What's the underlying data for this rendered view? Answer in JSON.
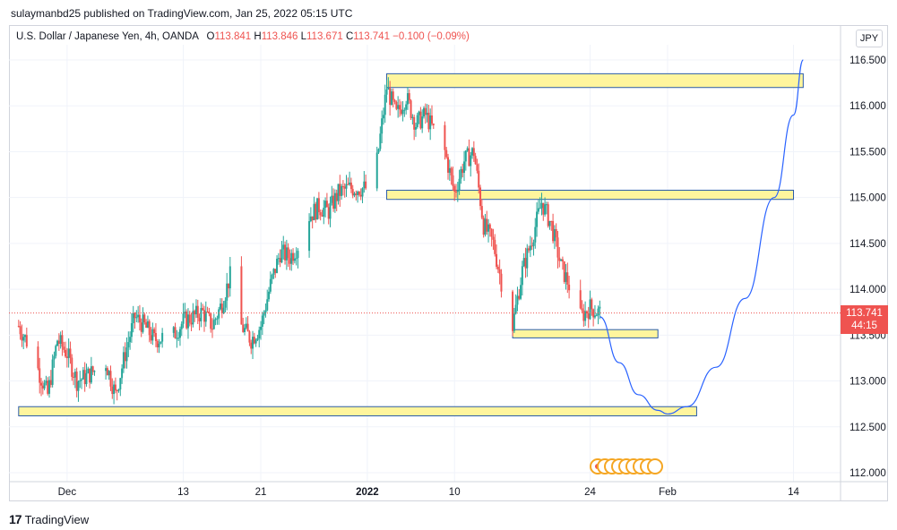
{
  "header": {
    "published_line": "sulaymanbd25 published on TradingView.com, Jan 25, 2022 05:15 UTC"
  },
  "legend": {
    "symbol": "U.S. Dollar / Japanese Yen, 4h, OANDA",
    "open_label": "O",
    "open": "113.841",
    "high_label": "H",
    "high": "113.846",
    "low_label": "L",
    "low": "113.671",
    "close_label": "C",
    "close": "113.741",
    "change": "−0.100 (−0.09%)"
  },
  "currency_button": "JPY",
  "price_tag": {
    "price": "113.741",
    "countdown": "44:15"
  },
  "footer": {
    "logo_text": "TradingView"
  },
  "colors": {
    "up": "#26a69a",
    "down": "#ef5350",
    "zone_fill": "#fff59d",
    "zone_border": "#2a5caa",
    "projection": "#2962ff",
    "last_price_line": "#ef5350"
  },
  "chart_data": {
    "type": "candlestick",
    "timeframe": "4h",
    "y_tick_labels": [
      "112.000",
      "112.500",
      "113.000",
      "113.500",
      "114.000",
      "114.500",
      "115.000",
      "115.500",
      "116.000",
      "116.500"
    ],
    "ylim": [
      111.95,
      116.65
    ],
    "x_tick_labels": [
      "Dec",
      "13",
      "21",
      "2022",
      "10",
      "24",
      "Feb",
      "14"
    ],
    "last_price": 113.741,
    "close_path": [
      [
        "2021-11-26",
        113.6
      ],
      [
        "2021-11-27",
        113.4
      ],
      [
        "2021-11-29",
        112.85
      ],
      [
        "2021-11-30",
        113.45
      ],
      [
        "2021-12-01",
        113.3
      ],
      [
        "2021-12-02",
        113.0
      ],
      [
        "2021-12-03",
        113.05
      ],
      [
        "2021-12-05",
        113.2
      ],
      [
        "2021-12-06",
        112.85
      ],
      [
        "2021-12-07",
        113.3
      ],
      [
        "2021-12-08",
        113.7
      ],
      [
        "2021-12-09",
        113.6
      ],
      [
        "2021-12-10",
        113.45
      ],
      [
        "2021-12-12",
        113.5
      ],
      [
        "2021-12-13",
        113.65
      ],
      [
        "2021-12-14",
        113.7
      ],
      [
        "2021-12-15",
        113.75
      ],
      [
        "2021-12-16",
        113.6
      ],
      [
        "2021-12-17",
        113.85
      ],
      [
        "2021-12-18",
        114.2
      ],
      [
        "2021-12-19",
        113.6
      ],
      [
        "2021-12-20",
        113.45
      ],
      [
        "2021-12-21",
        113.6
      ],
      [
        "2021-12-22",
        114.05
      ],
      [
        "2021-12-23",
        114.4
      ],
      [
        "2021-12-24",
        114.35
      ],
      [
        "2021-12-25",
        114.5
      ],
      [
        "2021-12-26",
        114.8
      ],
      [
        "2021-12-27",
        114.9
      ],
      [
        "2021-12-28",
        114.85
      ],
      [
        "2021-12-29",
        115.05
      ],
      [
        "2021-12-30",
        115.1
      ],
      [
        "2021-12-31",
        115.1
      ],
      [
        "2022-01-01",
        115.1
      ],
      [
        "2022-01-02",
        115.4
      ],
      [
        "2022-01-03",
        116.2
      ],
      [
        "2022-01-04",
        115.9
      ],
      [
        "2022-01-05",
        116.1
      ],
      [
        "2022-01-06",
        115.8
      ],
      [
        "2022-01-07",
        115.9
      ],
      [
        "2022-01-08",
        115.7
      ],
      [
        "2022-01-09",
        115.5
      ],
      [
        "2022-01-10",
        115.05
      ],
      [
        "2022-01-11",
        115.4
      ],
      [
        "2022-01-12",
        115.5
      ],
      [
        "2022-01-13",
        114.7
      ],
      [
        "2022-01-14",
        114.5
      ],
      [
        "2022-01-15",
        114.0
      ],
      [
        "2022-01-16",
        113.6
      ],
      [
        "2022-01-17",
        114.2
      ],
      [
        "2022-01-18",
        114.55
      ],
      [
        "2022-01-19",
        114.95
      ],
      [
        "2022-01-20",
        114.7
      ],
      [
        "2022-01-21",
        114.25
      ],
      [
        "2022-01-22",
        114.0
      ],
      [
        "2022-01-23",
        113.7
      ],
      [
        "2022-01-24",
        113.8
      ],
      [
        "2022-01-25",
        113.741
      ]
    ],
    "zones": [
      {
        "x_start": "2022-01-03",
        "x_end": "2022-02-15",
        "y_low": 116.2,
        "y_high": 116.35
      },
      {
        "x_start": "2022-01-03",
        "x_end": "2022-02-14",
        "y_low": 114.98,
        "y_high": 115.08
      },
      {
        "x_start": "2022-01-16",
        "x_end": "2022-01-31",
        "y_low": 113.47,
        "y_high": 113.56
      },
      {
        "x_start": "2021-11-26",
        "x_end": "2022-02-04",
        "y_low": 112.62,
        "y_high": 112.72
      }
    ],
    "projection_curve": [
      [
        "2022-01-25",
        113.7
      ],
      [
        "2022-01-27",
        113.2
      ],
      [
        "2022-01-29",
        112.85
      ],
      [
        "2022-01-31",
        112.68
      ],
      [
        "2022-02-01",
        112.64
      ],
      [
        "2022-02-03",
        112.72
      ],
      [
        "2022-02-06",
        113.15
      ],
      [
        "2022-02-09",
        113.9
      ],
      [
        "2022-02-12",
        115.0
      ],
      [
        "2022-02-14",
        115.9
      ],
      [
        "2022-02-15",
        116.5
      ]
    ],
    "grid": true,
    "legend": "top-left"
  }
}
